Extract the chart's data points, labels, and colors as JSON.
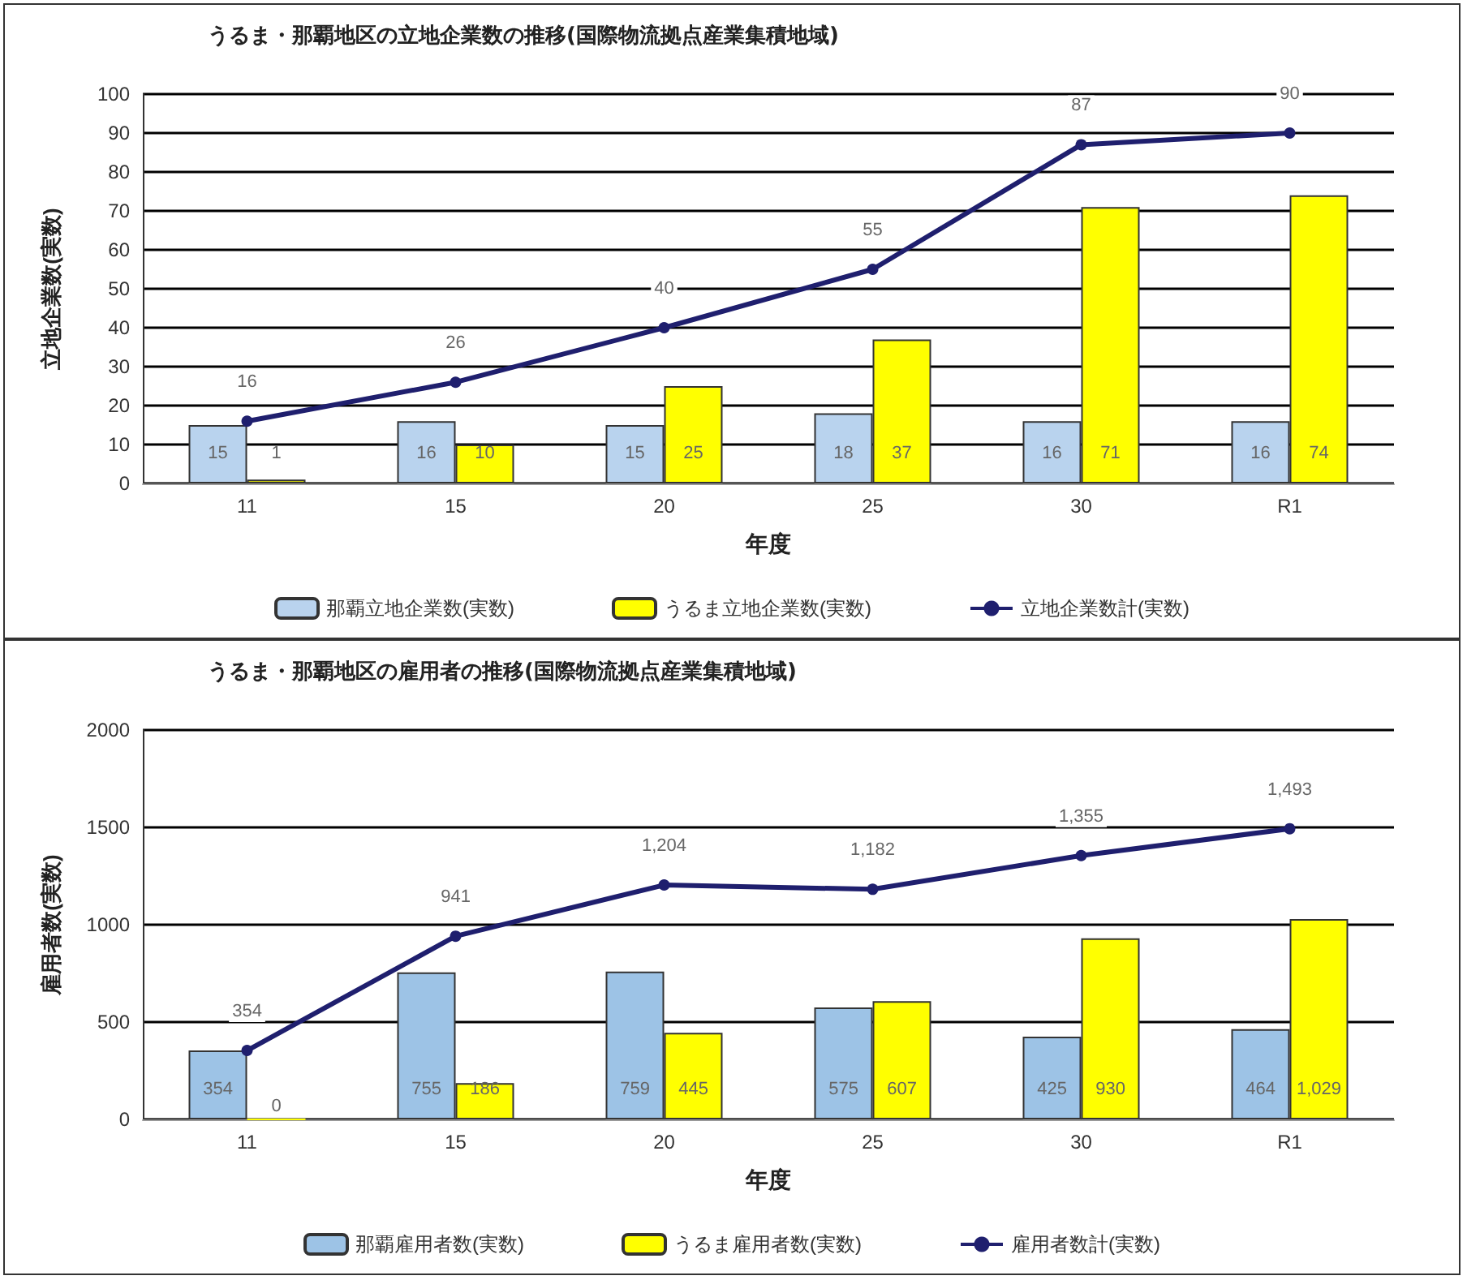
{
  "chart_data": [
    {
      "type": "bar",
      "title": "うるま・那覇地区の立地企業数の推移(国際物流拠点産業集積地域)",
      "xlabel": "年度",
      "ylabel": "立地企業数(実数)",
      "categories": [
        "11",
        "15",
        "20",
        "25",
        "30",
        "R1"
      ],
      "ylim": [
        0,
        100
      ],
      "yticks": [
        0,
        10,
        20,
        30,
        40,
        50,
        60,
        70,
        80,
        90,
        100
      ],
      "grid": "y",
      "legend": "bottom",
      "data_labels": true,
      "series": [
        {
          "name": "那覇立地企業数(実数)",
          "color": "#b9d3ee",
          "values": [
            15,
            16,
            15,
            18,
            16,
            16
          ]
        },
        {
          "name": "うるま立地企業数(実数)",
          "color": "#ffff00",
          "values": [
            1,
            10,
            25,
            37,
            71,
            74
          ]
        },
        {
          "name": "立地企業数計(実数)",
          "type": "line",
          "color": "#1f1f6e",
          "marker": "circle",
          "line_style": "solid",
          "values": [
            16,
            26,
            40,
            55,
            87,
            90
          ]
        }
      ]
    },
    {
      "type": "bar",
      "title": "うるま・那覇地区の雇用者の推移(国際物流拠点産業集積地域)",
      "xlabel": "年度",
      "ylabel": "雇用者数(実数)",
      "categories": [
        "11",
        "15",
        "20",
        "25",
        "30",
        "R1"
      ],
      "ylim": [
        0,
        2000
      ],
      "yticks": [
        0,
        500,
        1000,
        1500,
        2000
      ],
      "grid": "y",
      "legend": "bottom",
      "series": [
        {
          "name": "那覇雇用者数(実数)",
          "color": "#9dc3e6",
          "values": [
            354,
            755,
            759,
            575,
            425,
            464
          ],
          "value_labels": [
            "354",
            "755",
            "759",
            "575",
            "425",
            "464"
          ]
        },
        {
          "name": "うるま雇用者数(実数)",
          "color": "#ffff00",
          "values": [
            0,
            186,
            445,
            607,
            930,
            1029
          ],
          "value_labels": [
            "0",
            "186",
            "445",
            "607",
            "930",
            "1,029"
          ]
        },
        {
          "name": "雇用者数計(実数)",
          "type": "line",
          "color": "#1f1f6e",
          "marker": "circle",
          "line_style": "solid",
          "values": [
            354,
            941,
            1204,
            1182,
            1355,
            1493
          ],
          "value_labels": [
            "354",
            "941",
            "1,204",
            "1,182",
            "1,355",
            "1,493"
          ]
        }
      ]
    }
  ]
}
